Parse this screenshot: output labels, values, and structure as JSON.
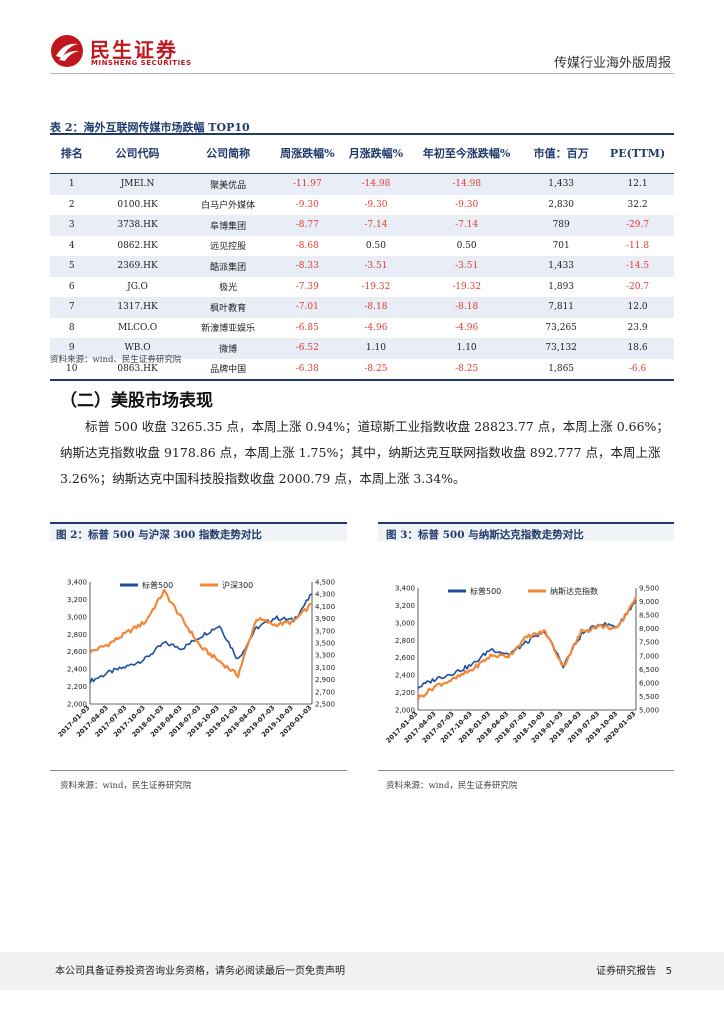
{
  "header": {
    "logo_cn": "民生证券",
    "logo_en": "MINSHENG SECURITIES",
    "report_type": "传媒行业海外版周报"
  },
  "table": {
    "title": "表 2：海外互联网传媒市场跌幅 TOP10",
    "headers": [
      "排名",
      "公司代码",
      "公司简称",
      "周涨跌幅%",
      "月涨跌幅%",
      "年初至今涨跌幅%",
      "市值：百万",
      "PE(TTM)"
    ],
    "rows": [
      [
        "1",
        "JMEI.N",
        "聚美优品",
        "-11.97",
        "-14.98",
        "-14.98",
        "1,433",
        "12.1"
      ],
      [
        "2",
        "0100.HK",
        "白马户外媒体",
        "-9.30",
        "-9.30",
        "-9.30",
        "2,830",
        "32.2"
      ],
      [
        "3",
        "3738.HK",
        "阜博集团",
        "-8.77",
        "-7.14",
        "-7.14",
        "789",
        "-29.7"
      ],
      [
        "4",
        "0862.HK",
        "远见控股",
        "-8.68",
        "0.50",
        "0.50",
        "701",
        "-11.8"
      ],
      [
        "5",
        "2369.HK",
        "酷派集团",
        "-8.33",
        "-3.51",
        "-3.51",
        "1,433",
        "-14.5"
      ],
      [
        "6",
        "JG.O",
        "极光",
        "-7.39",
        "-19.32",
        "-19.32",
        "1,893",
        "-20.7"
      ],
      [
        "7",
        "1317.HK",
        "枫叶教育",
        "-7.01",
        "-8.18",
        "-8.18",
        "7,811",
        "12.0"
      ],
      [
        "8",
        "MLCO.O",
        "新濠博亚娱乐",
        "-6.85",
        "-4.96",
        "-4.96",
        "73,265",
        "23.9"
      ],
      [
        "9",
        "WB.O",
        "微博",
        "-6.52",
        "1.10",
        "1.10",
        "73,132",
        "18.6"
      ],
      [
        "10",
        "0863.HK",
        "品牌中国",
        "-6.38",
        "-8.25",
        "-8.25",
        "1,865",
        "-6.6"
      ]
    ],
    "source": "资料来源：wind、民生证券研究院"
  },
  "section": {
    "title": "（二）美股市场表现",
    "paragraph": "标普 500 收盘 3265.35 点，本周上涨 0.94%；道琼斯工业指数收盘 28823.77 点，本周上涨 0.66%；纳斯达克指数收盘 9178.86 点，本周上涨 1.75%；其中，纳斯达克互联网指数收盘 892.777 点，本周上涨 3.26%；纳斯达克中国科技股指数收盘 2000.79 点，本周上涨 3.34%。"
  },
  "figures": [
    {
      "title": "图 2：标普 500 与沪深 300 指数走势对比",
      "source": "资料来源：wind，民生证券研究院",
      "chart_data": {
        "type": "line",
        "x": [
          "2017-01-03",
          "2017-04-03",
          "2017-07-03",
          "2017-10-03",
          "2018-01-03",
          "2018-04-03",
          "2018-07-03",
          "2018-10-03",
          "2019-01-03",
          "2019-04-03",
          "2019-07-03",
          "2019-10-03",
          "2020-01-03"
        ],
        "series": [
          {
            "name": "标普500",
            "axis": "left",
            "color": "#1f4e9c",
            "values": [
              2260,
              2360,
              2430,
              2520,
              2700,
              2640,
              2780,
              2900,
              2510,
              2870,
              2990,
              2960,
              3260
            ]
          },
          {
            "name": "沪深300",
            "axis": "right",
            "color": "#f0883a",
            "values": [
              3350,
              3480,
              3670,
              3850,
              4350,
              3880,
              3430,
              3200,
              2970,
              3900,
              3800,
              3850,
              4140
            ]
          }
        ],
        "left_axis": {
          "min": 2000,
          "max": 3400,
          "ticks": [
            "2,000",
            "2,200",
            "2,400",
            "2,600",
            "2,800",
            "3,000",
            "3,200",
            "3,400"
          ]
        },
        "right_axis": {
          "min": 2500,
          "max": 4500,
          "ticks": [
            "2,500",
            "2,700",
            "2,900",
            "3,100",
            "3,300",
            "3,500",
            "3,700",
            "3,900",
            "4,100",
            "4,300",
            "4,500"
          ]
        },
        "legend_position": "top"
      }
    },
    {
      "title": "图 3：标普 500 与纳斯达克指数走势对比",
      "source": "资料来源：wind，民生证券研究院",
      "chart_data": {
        "type": "line",
        "x": [
          "2017-01-03",
          "2017-04-03",
          "2017-07-03",
          "2017-10-03",
          "2018-01-03",
          "2018-04-03",
          "2018-07-03",
          "2018-10-03",
          "2019-01-03",
          "2019-04-03",
          "2019-07-03",
          "2019-10-03",
          "2020-01-03"
        ],
        "series": [
          {
            "name": "标普500",
            "axis": "left",
            "color": "#1f4e9c",
            "values": [
              2260,
              2360,
              2430,
              2520,
              2700,
              2640,
              2780,
              2900,
              2510,
              2870,
              2990,
              2960,
              3260
            ]
          },
          {
            "name": "纳斯达克指数",
            "axis": "right",
            "color": "#f0883a",
            "values": [
              5430,
              5900,
              6140,
              6500,
              7000,
              7000,
              7700,
              7900,
              6600,
              7900,
              8100,
              8000,
              9180
            ]
          }
        ],
        "left_axis": {
          "min": 2000,
          "max": 3400,
          "ticks": [
            "2,000",
            "2,200",
            "2,400",
            "2,600",
            "2,800",
            "3,000",
            "3,200",
            "3,400"
          ]
        },
        "right_axis": {
          "min": 5000,
          "max": 9500,
          "ticks": [
            "5,000",
            "5,500",
            "6,000",
            "6,500",
            "7,000",
            "7,500",
            "8,000",
            "8,500",
            "9,000",
            "9,500"
          ]
        },
        "legend_position": "top"
      }
    }
  ],
  "footer": {
    "disclaimer": "本公司具备证券投资咨询业务资格，请务必阅读最后一页免责声明",
    "right_label": "证券研究报告",
    "page": "5"
  }
}
